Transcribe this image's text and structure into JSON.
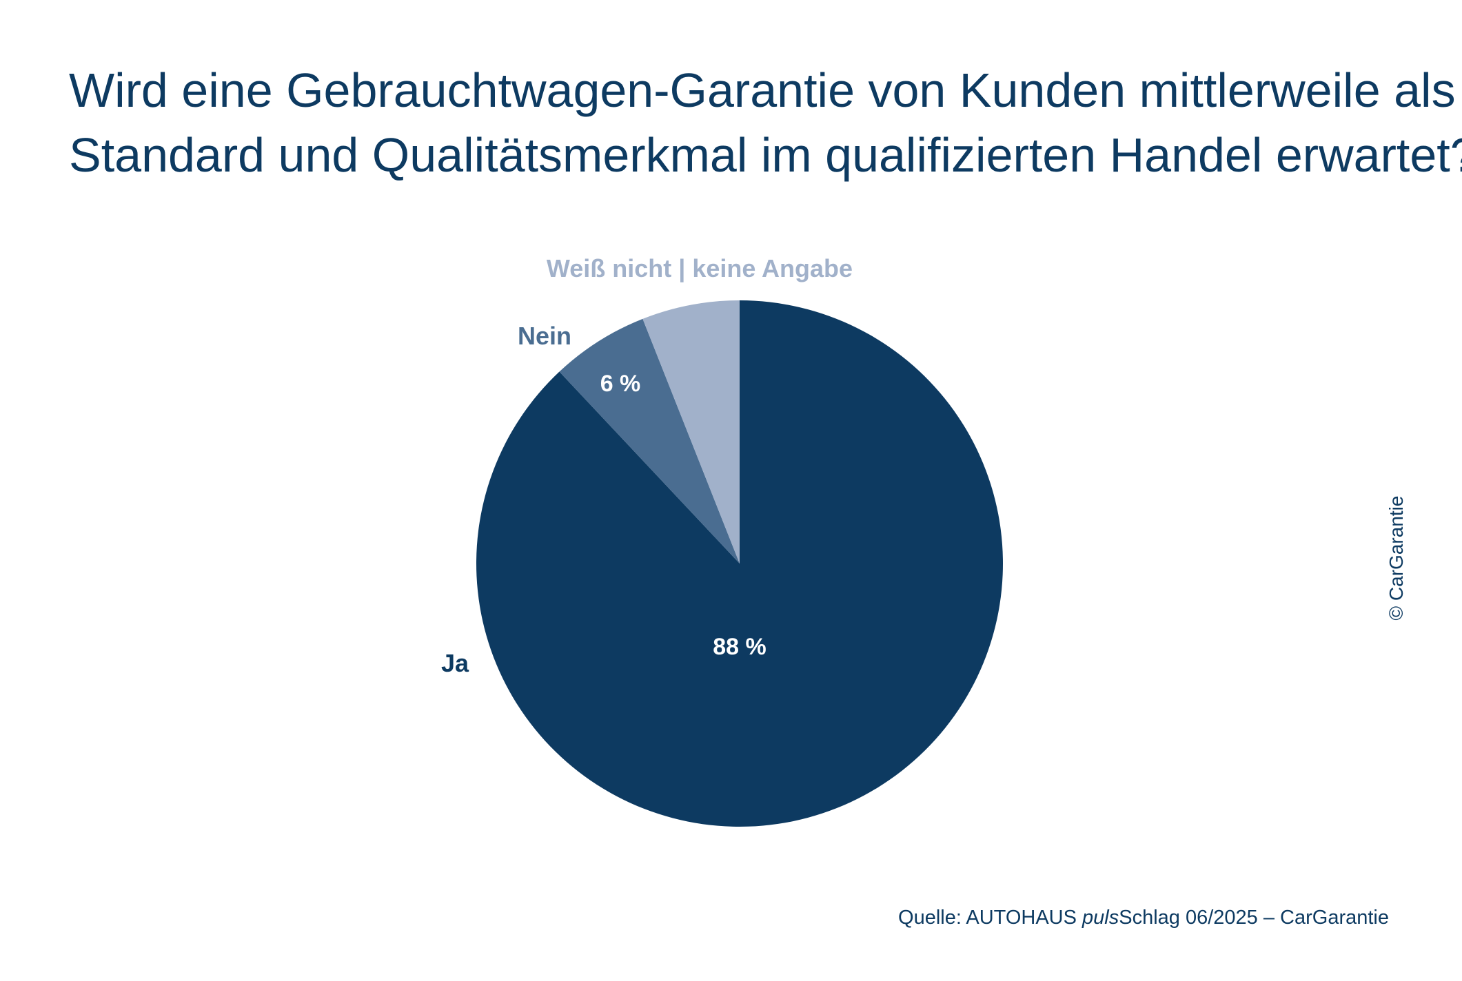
{
  "title": {
    "line1": "Wird eine Gebrauchtwagen-Garantie von Kunden mittlerweile als",
    "line2": "Standard und Qualitätsmerkmal im qualifizierten Handel erwartet?"
  },
  "chart_data": {
    "type": "pie",
    "title": "Wird eine Gebrauchtwagen-Garantie von Kunden mittlerweile als Standard und Qualitätsmerkmal im qualifizierten Handel erwartet?",
    "categories": [
      "Ja",
      "Nein",
      "Weiß nicht | keine Angabe"
    ],
    "values": [
      88,
      6,
      6
    ],
    "value_labels": [
      "88 %",
      "6 %",
      ""
    ],
    "colors": [
      "#0d3a61",
      "#4a6d91",
      "#a1b1ca"
    ],
    "label_colors": [
      "#0d3a61",
      "#4a6d91",
      "#a1b1ca"
    ],
    "value_label_color": "#ffffff",
    "start": "12 o'clock",
    "direction": "clockwise"
  },
  "copyright": "© CarGarantie",
  "source": {
    "prefix": "Quelle: AUTOHAUS ",
    "italic": "puls",
    "suffix": "Schlag 06/2025 – CarGarantie"
  }
}
